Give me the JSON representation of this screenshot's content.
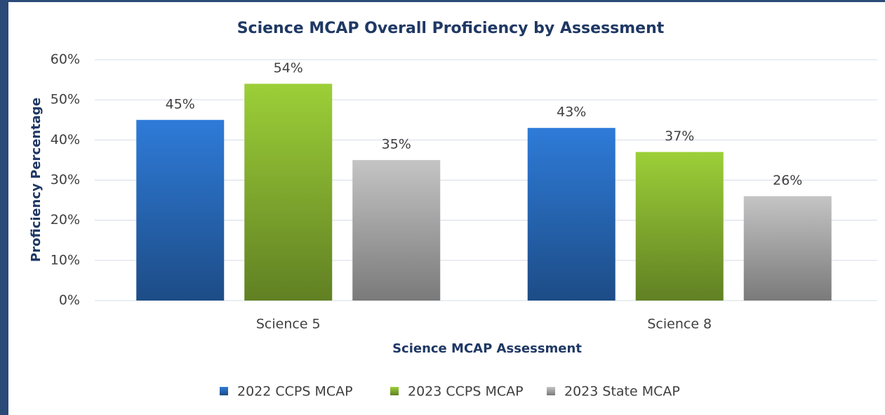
{
  "chart_data": {
    "type": "bar",
    "title": "Science MCAP Overall Proficiency by Assessment",
    "x_label": "Science MCAP Assessment",
    "y_label": "Proficiency Percentage",
    "categories": [
      "Science 5",
      "Science 8"
    ],
    "series": [
      {
        "name": "2022 CCPS MCAP",
        "color": "#2e7bd8",
        "values": [
          45,
          43
        ],
        "value_labels": [
          "45%",
          "43%"
        ]
      },
      {
        "name": "2023 CCPS MCAP",
        "color": "#9ccf38",
        "values": [
          54,
          37
        ],
        "value_labels": [
          "54%",
          "37%"
        ]
      },
      {
        "name": "2023 State MCAP",
        "color": "#c4c4c4",
        "values": [
          35,
          26
        ],
        "value_labels": [
          "35%",
          "26%"
        ]
      }
    ],
    "ylim": [
      0,
      60
    ],
    "yticks": [
      {
        "value": 0,
        "label": "0%"
      },
      {
        "value": 10,
        "label": "10%"
      },
      {
        "value": 20,
        "label": "20%"
      },
      {
        "value": 30,
        "label": "30%"
      },
      {
        "value": 40,
        "label": "40%"
      },
      {
        "value": 50,
        "label": "50%"
      },
      {
        "value": 60,
        "label": "60%"
      }
    ],
    "grid": true,
    "legend": "bottom"
  }
}
